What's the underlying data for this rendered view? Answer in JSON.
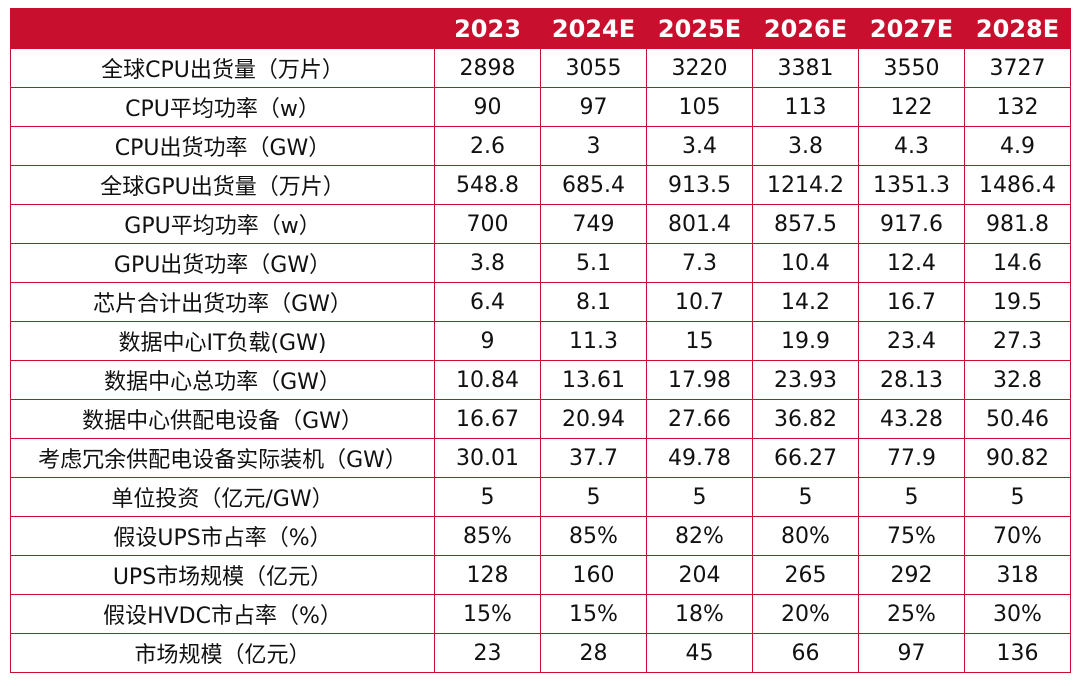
{
  "table": {
    "header_blank": "",
    "columns": [
      "2023",
      "2024E",
      "2025E",
      "2026E",
      "2027E",
      "2028E"
    ],
    "rows": [
      {
        "label": "全球CPU出货量（万片）",
        "values": [
          "2898",
          "3055",
          "3220",
          "3381",
          "3550",
          "3727"
        ]
      },
      {
        "label": "CPU平均功率（w）",
        "values": [
          "90",
          "97",
          "105",
          "113",
          "122",
          "132"
        ]
      },
      {
        "label": "CPU出货功率（GW）",
        "values": [
          "2.6",
          "3",
          "3.4",
          "3.8",
          "4.3",
          "4.9"
        ]
      },
      {
        "label": "全球GPU出货量（万片）",
        "values": [
          "548.8",
          "685.4",
          "913.5",
          "1214.2",
          "1351.3",
          "1486.4"
        ]
      },
      {
        "label": "GPU平均功率（w）",
        "values": [
          "700",
          "749",
          "801.4",
          "857.5",
          "917.6",
          "981.8"
        ]
      },
      {
        "label": "GPU出货功率（GW）",
        "values": [
          "3.8",
          "5.1",
          "7.3",
          "10.4",
          "12.4",
          "14.6"
        ]
      },
      {
        "label": "芯片合计出货功率（GW）",
        "values": [
          "6.4",
          "8.1",
          "10.7",
          "14.2",
          "16.7",
          "19.5"
        ]
      },
      {
        "label": "数据中心IT负载(GW)",
        "values": [
          "9",
          "11.3",
          "15",
          "19.9",
          "23.4",
          "27.3"
        ]
      },
      {
        "label": "数据中心总功率（GW）",
        "values": [
          "10.84",
          "13.61",
          "17.98",
          "23.93",
          "28.13",
          "32.8"
        ]
      },
      {
        "label": "数据中心供配电设备（GW）",
        "values": [
          "16.67",
          "20.94",
          "27.66",
          "36.82",
          "43.28",
          "50.46"
        ]
      },
      {
        "label": "考虑冗余供配电设备实际装机（GW）",
        "values": [
          "30.01",
          "37.7",
          "49.78",
          "66.27",
          "77.9",
          "90.82"
        ]
      },
      {
        "label": "单位投资（亿元/GW）",
        "values": [
          "5",
          "5",
          "5",
          "5",
          "5",
          "5"
        ]
      },
      {
        "label": "假设UPS市占率（%）",
        "values": [
          "85%",
          "85%",
          "82%",
          "80%",
          "75%",
          "70%"
        ]
      },
      {
        "label": "UPS市场规模（亿元）",
        "values": [
          "128",
          "160",
          "204",
          "265",
          "292",
          "318"
        ]
      },
      {
        "label": "假设HVDC市占率（%）",
        "values": [
          "15%",
          "15%",
          "18%",
          "20%",
          "25%",
          "30%"
        ]
      },
      {
        "label": "市场规模（亿元）",
        "values": [
          "23",
          "28",
          "45",
          "66",
          "97",
          "136"
        ]
      }
    ]
  },
  "colors": {
    "header_bg": "#c8102e",
    "border": "#c8102e",
    "header_text": "#ffffff",
    "body_text": "#111111"
  }
}
